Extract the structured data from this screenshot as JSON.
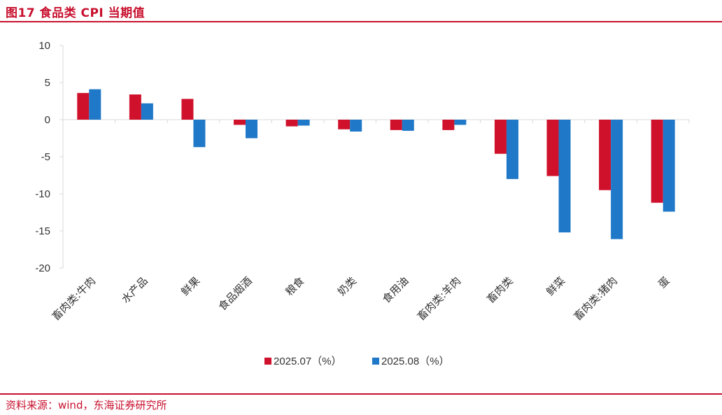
{
  "figure": {
    "title": "图17  食品类 CPI 当期值",
    "source": "资料来源：wind，东海证券研究所"
  },
  "colors": {
    "accent": "#c8102e",
    "series_1": "#d0112b",
    "series_2": "#1f78c8",
    "axis": "#d9d9d9"
  },
  "chart_data": {
    "type": "bar",
    "title": "",
    "xlabel": "",
    "ylabel": "",
    "ylim": [
      -20,
      10
    ],
    "yticks": [
      10,
      5,
      0,
      -5,
      -10,
      -15,
      -20
    ],
    "grid": false,
    "legend_position": "bottom-center",
    "categories": [
      "畜肉类:牛肉",
      "水产品",
      "鲜果",
      "食品烟酒",
      "粮食",
      "奶类",
      "食用油",
      "畜肉类:羊肉",
      "畜肉类",
      "鲜菜",
      "畜肉类:猪肉",
      "蛋"
    ],
    "series": [
      {
        "name": "2025.07（%）",
        "values": [
          3.6,
          3.4,
          2.8,
          -0.7,
          -0.9,
          -1.3,
          -1.4,
          -1.4,
          -4.6,
          -7.6,
          -9.5,
          -11.2
        ]
      },
      {
        "name": "2025.08（%）",
        "values": [
          4.1,
          2.2,
          -3.7,
          -2.5,
          -0.8,
          -1.6,
          -1.5,
          -0.7,
          -8.0,
          -15.2,
          -16.1,
          -12.4
        ]
      }
    ]
  }
}
